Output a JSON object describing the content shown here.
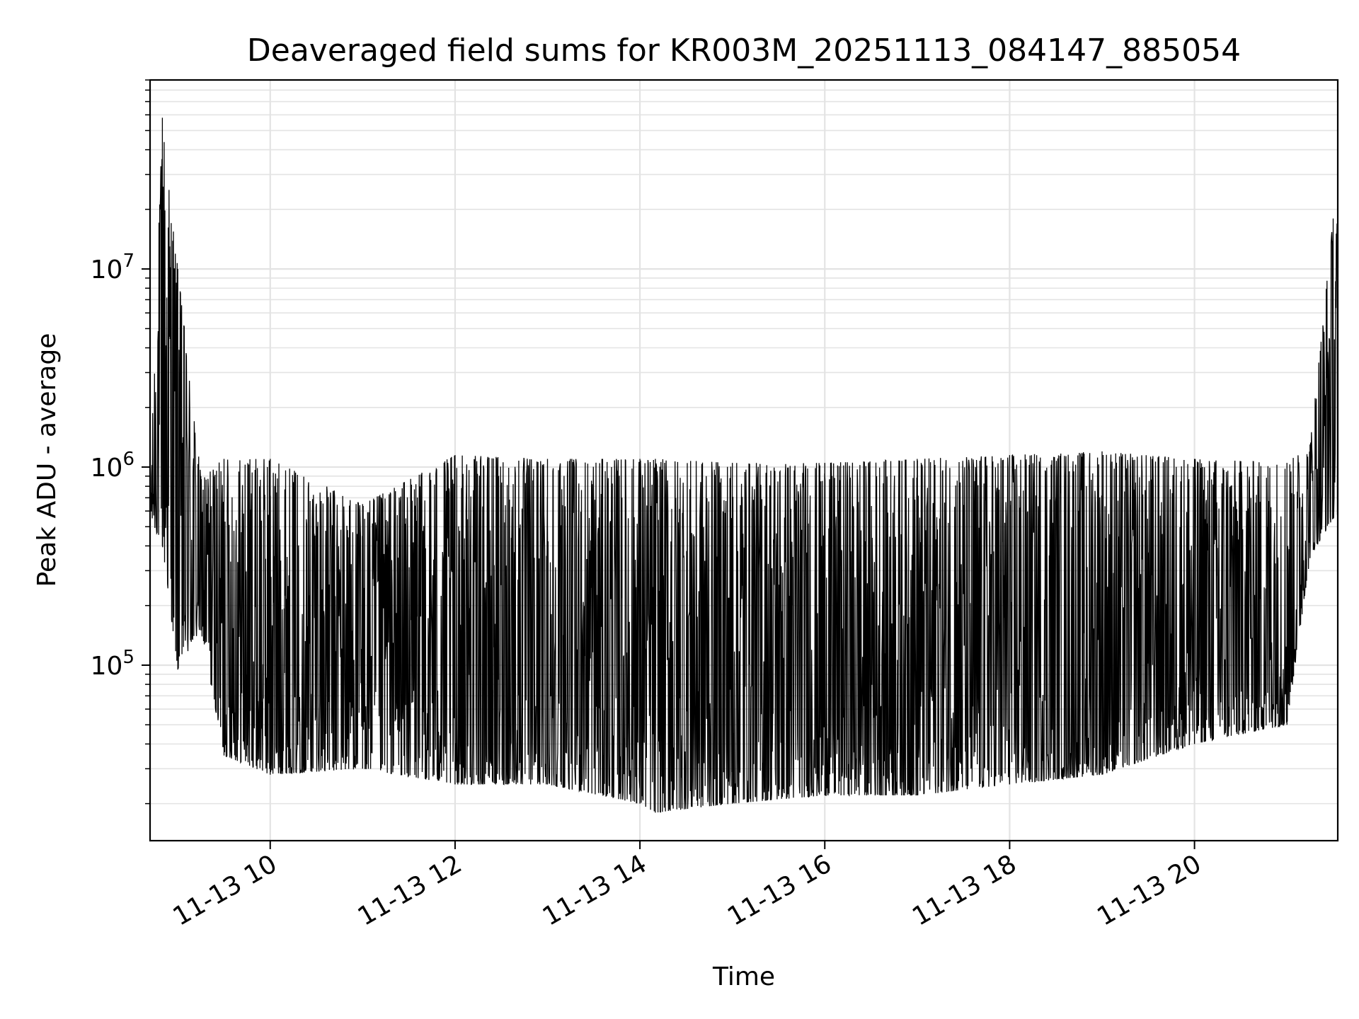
{
  "chart_data": {
    "type": "line",
    "title": "Deaveraged field sums for KR003M_20251113_084147_885054",
    "xlabel": "Time",
    "ylabel": "Peak ADU - average",
    "yscale": "log",
    "grid": true,
    "line_color": "#000000",
    "grid_color": "#e3e3e3",
    "xlim": [
      "2025-11-13 08:42",
      "2025-11-13 21:33"
    ],
    "ylim": [
      13000,
      90000000
    ],
    "x_ticks": [
      {
        "time": "2025-11-13 10:00",
        "label": "11-13 10"
      },
      {
        "time": "2025-11-13 12:00",
        "label": "11-13 12"
      },
      {
        "time": "2025-11-13 14:00",
        "label": "11-13 14"
      },
      {
        "time": "2025-11-13 16:00",
        "label": "11-13 16"
      },
      {
        "time": "2025-11-13 18:00",
        "label": "11-13 18"
      },
      {
        "time": "2025-11-13 20:00",
        "label": "11-13 20"
      }
    ],
    "y_ticks": [
      {
        "value": 100000,
        "base": "10",
        "exp": "5"
      },
      {
        "value": 1000000,
        "base": "10",
        "exp": "6"
      },
      {
        "value": 10000000,
        "base": "10",
        "exp": "7"
      }
    ],
    "series": [
      {
        "description_points": [
          {
            "x": "2025-11-13 08:42",
            "y_low": 550000,
            "y_high": 750000
          },
          {
            "x": "2025-11-13 08:50",
            "y_low": 400000,
            "y_high": 58000000
          },
          {
            "x": "2025-11-13 09:00",
            "y_low": 95000,
            "y_high": 10000000
          },
          {
            "x": "2025-11-13 09:15",
            "y_low": 150000,
            "y_high": 900000
          },
          {
            "x": "2025-11-13 09:30",
            "y_low": 35000,
            "y_high": 1100000
          },
          {
            "x": "2025-11-13 10:00",
            "y_low": 28000,
            "y_high": 1100000
          },
          {
            "x": "2025-11-13 11:00",
            "y_low": 30000,
            "y_high": 650000
          },
          {
            "x": "2025-11-13 12:00",
            "y_low": 25000,
            "y_high": 1150000
          },
          {
            "x": "2025-11-13 13:00",
            "y_low": 25000,
            "y_high": 1100000
          },
          {
            "x": "2025-11-13 14:00",
            "y_low": 20000,
            "y_high": 1100000
          },
          {
            "x": "2025-11-13 14:10",
            "y_low": 18000,
            "y_high": 1100000
          },
          {
            "x": "2025-11-13 15:00",
            "y_low": 20000,
            "y_high": 1050000
          },
          {
            "x": "2025-11-13 16:00",
            "y_low": 22000,
            "y_high": 1050000
          },
          {
            "x": "2025-11-13 17:00",
            "y_low": 22000,
            "y_high": 1100000
          },
          {
            "x": "2025-11-13 18:00",
            "y_low": 25000,
            "y_high": 1150000
          },
          {
            "x": "2025-11-13 19:00",
            "y_low": 28000,
            "y_high": 1200000
          },
          {
            "x": "2025-11-13 20:00",
            "y_low": 40000,
            "y_high": 1100000
          },
          {
            "x": "2025-11-13 21:00",
            "y_low": 50000,
            "y_high": 1050000
          },
          {
            "x": "2025-11-13 21:15",
            "y_low": 350000,
            "y_high": 1300000
          },
          {
            "x": "2025-11-13 21:30",
            "y_low": 550000,
            "y_high": 18000000
          }
        ]
      }
    ]
  }
}
